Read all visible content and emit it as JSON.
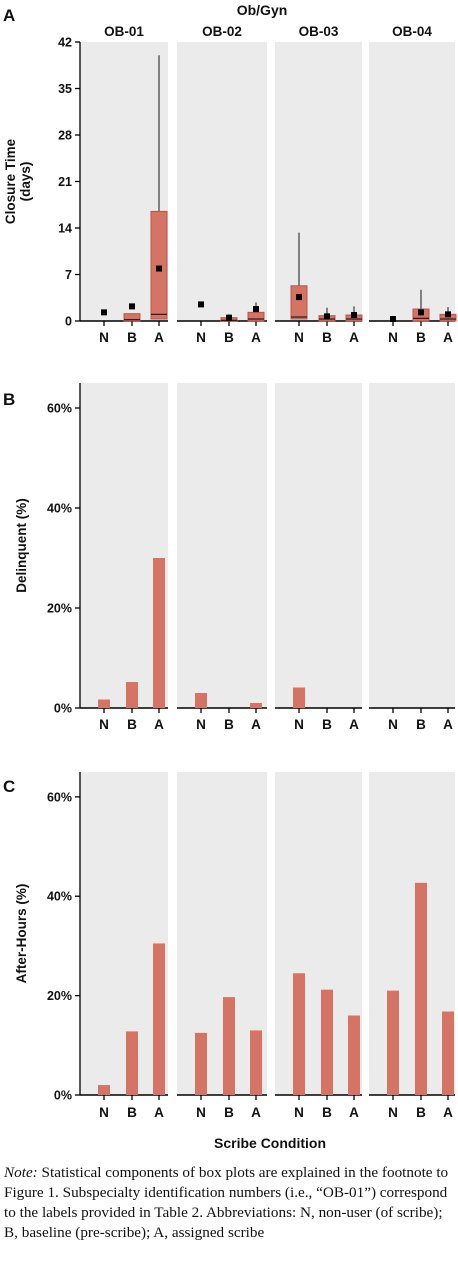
{
  "figure": {
    "top_title": "Ob/Gyn",
    "x_axis_title": "Scribe Condition",
    "conditions": [
      "N",
      "B",
      "A"
    ],
    "subspecialties": [
      "OB-01",
      "OB-02",
      "OB-03",
      "OB-04"
    ],
    "colors": {
      "bar": "#d57365",
      "bar_edge": "#b65548",
      "panel_bg": "#ebebeb",
      "axis": "#000000",
      "median": "#2a1a18",
      "mean_marker": "#000000"
    }
  },
  "chart_data": [
    {
      "panel_letter": "A",
      "type": "box",
      "ylabel": "Closure Time (days)",
      "ylim": [
        0,
        42
      ],
      "yticks": [
        0,
        7,
        14,
        21,
        28,
        35,
        42
      ],
      "ytick_labels": [
        "0",
        "7",
        "14",
        "21",
        "28",
        "35",
        "42"
      ],
      "groups": [
        {
          "name": "OB-01",
          "boxes": [
            {
              "condition": "N",
              "q1": 0,
              "median": 0,
              "q3": 0,
              "whisker_low": 0,
              "whisker_high": 0,
              "mean": 1.3
            },
            {
              "condition": "B",
              "q1": 0,
              "median": 0.2,
              "q3": 1.1,
              "whisker_low": 0,
              "whisker_high": 1.1,
              "mean": 2.2
            },
            {
              "condition": "A",
              "q1": 0.3,
              "median": 1.0,
              "q3": 16.5,
              "whisker_low": 0,
              "whisker_high": 40.0,
              "mean": 7.9
            }
          ]
        },
        {
          "name": "OB-02",
          "boxes": [
            {
              "condition": "N",
              "q1": 0,
              "median": 0,
              "q3": 0,
              "whisker_low": 0,
              "whisker_high": 0,
              "mean": 2.5
            },
            {
              "condition": "B",
              "q1": 0,
              "median": 0.1,
              "q3": 0.5,
              "whisker_low": 0,
              "whisker_high": 1.0,
              "mean": 0.5
            },
            {
              "condition": "A",
              "q1": 0,
              "median": 0.3,
              "q3": 1.3,
              "whisker_low": 0,
              "whisker_high": 2.8,
              "mean": 1.8
            }
          ]
        },
        {
          "name": "OB-03",
          "boxes": [
            {
              "condition": "N",
              "q1": 0.3,
              "median": 0.6,
              "q3": 5.3,
              "whisker_low": 0,
              "whisker_high": 13.3,
              "mean": 3.6
            },
            {
              "condition": "B",
              "q1": 0,
              "median": 0.3,
              "q3": 0.8,
              "whisker_low": 0,
              "whisker_high": 2.0,
              "mean": 0.7
            },
            {
              "condition": "A",
              "q1": 0,
              "median": 0.3,
              "q3": 0.9,
              "whisker_low": 0,
              "whisker_high": 2.2,
              "mean": 0.9
            }
          ]
        },
        {
          "name": "OB-04",
          "boxes": [
            {
              "condition": "N",
              "q1": 0,
              "median": 0,
              "q3": 0,
              "whisker_low": 0,
              "whisker_high": 0,
              "mean": 0.3
            },
            {
              "condition": "B",
              "q1": 0,
              "median": 0.4,
              "q3": 1.8,
              "whisker_low": 0,
              "whisker_high": 4.7,
              "mean": 1.3
            },
            {
              "condition": "A",
              "q1": 0,
              "median": 0.3,
              "q3": 1.0,
              "whisker_low": 0,
              "whisker_high": 2.1,
              "mean": 1.0
            }
          ]
        }
      ]
    },
    {
      "panel_letter": "B",
      "type": "bar",
      "ylabel": "Delinquent (%)",
      "ylim": [
        0,
        65
      ],
      "yticks": [
        0,
        20,
        40,
        60
      ],
      "ytick_labels": [
        "0%",
        "20%",
        "40%",
        "60%"
      ],
      "categories": [
        "N",
        "B",
        "A"
      ],
      "series": [
        {
          "name": "OB-01",
          "values": [
            1.7,
            5.2,
            30.0
          ]
        },
        {
          "name": "OB-02",
          "values": [
            3.0,
            0,
            1.0
          ]
        },
        {
          "name": "OB-03",
          "values": [
            4.1,
            0,
            0
          ]
        },
        {
          "name": "OB-04",
          "values": [
            0,
            0,
            0
          ]
        }
      ]
    },
    {
      "panel_letter": "C",
      "type": "bar",
      "ylabel": "After-Hours (%)",
      "ylim": [
        0,
        65
      ],
      "yticks": [
        0,
        20,
        40,
        60
      ],
      "ytick_labels": [
        "0%",
        "20%",
        "40%",
        "60%"
      ],
      "categories": [
        "N",
        "B",
        "A"
      ],
      "series": [
        {
          "name": "OB-01",
          "values": [
            2.0,
            12.8,
            30.5
          ]
        },
        {
          "name": "OB-02",
          "values": [
            12.5,
            19.7,
            13.0
          ]
        },
        {
          "name": "OB-03",
          "values": [
            24.5,
            21.2,
            16.0
          ]
        },
        {
          "name": "OB-04",
          "values": [
            21.0,
            42.7,
            16.8
          ]
        }
      ]
    }
  ],
  "note": {
    "label": "Note:",
    "text": " Statistical components of box plots are explained in the footnote to Figure 1. Subspecialty identification numbers (i.e., “OB-01”) correspond to the labels provided in Table 2. Abbreviations: N, non-user (of scribe); B, baseline (pre-scribe); A, assigned scribe"
  }
}
